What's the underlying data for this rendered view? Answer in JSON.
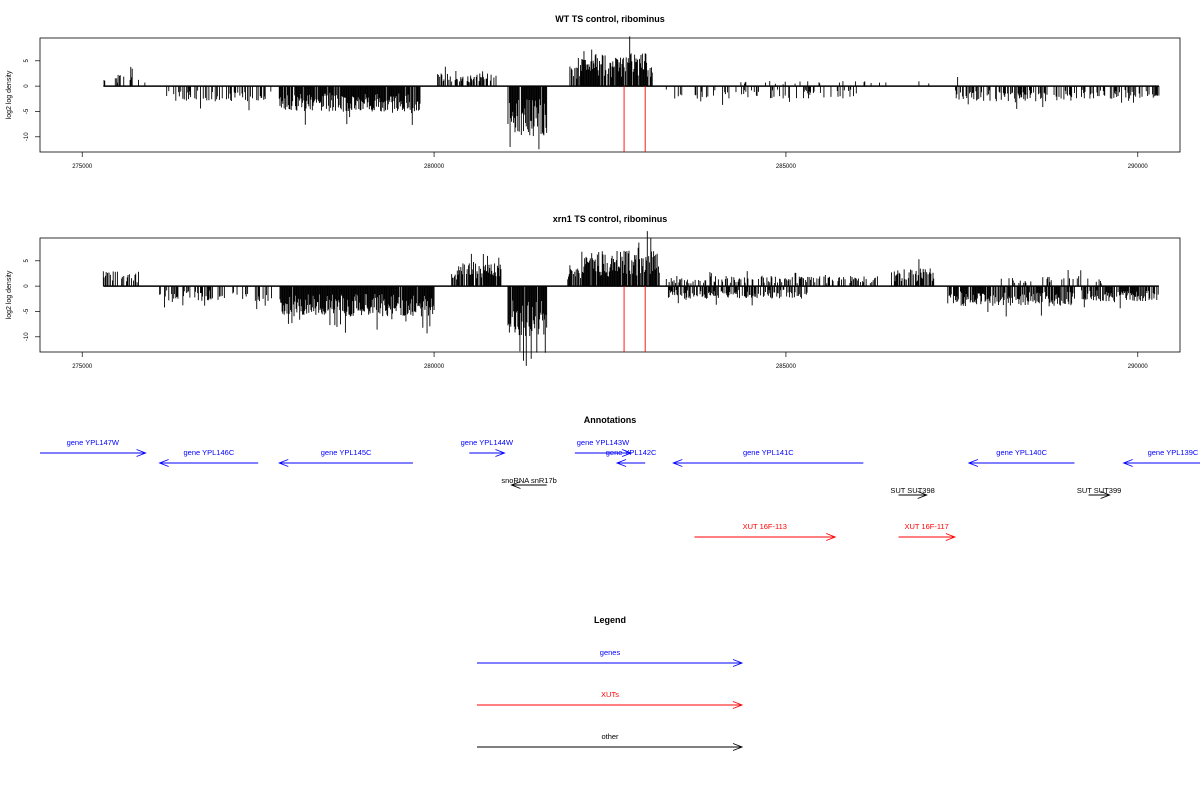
{
  "colors": {
    "gene": "#0000ff",
    "xut": "#ff0000",
    "other": "#000000",
    "marker": "#ff0000",
    "bars": "#000000"
  },
  "chart_data": [
    {
      "type": "bar",
      "title": "WT TS control, ribominus",
      "ylabel": "log2 log density",
      "xlim": [
        274400,
        290600
      ],
      "ylim": [
        -13,
        9.5
      ],
      "x_ticks": [
        275000,
        280000,
        285000,
        290000
      ],
      "y_ticks": [
        -10,
        -5,
        0,
        5
      ],
      "x_tick_labels": [
        "275000",
        "280000",
        "285000",
        "290000"
      ],
      "y_tick_labels": [
        "-10",
        "-5",
        "0",
        "5"
      ],
      "grid": false,
      "markers_x": [
        282700,
        283000
      ],
      "markers_ylim": [
        -13,
        0
      ],
      "regions": [
        {
          "from": 275300,
          "to": 275900,
          "sign": 1,
          "amp": 2.5,
          "density": 0.15
        },
        {
          "from": 276200,
          "to": 277700,
          "sign": -1,
          "amp": 3,
          "density": 0.4
        },
        {
          "from": 277800,
          "to": 279800,
          "sign": -1,
          "amp": 5,
          "density": 0.9
        },
        {
          "from": 280050,
          "to": 280900,
          "sign": 1,
          "amp": 2.5,
          "density": 0.4
        },
        {
          "from": 280350,
          "to": 280700,
          "sign": 1,
          "amp": 2,
          "density": 0.3
        },
        {
          "from": 281050,
          "to": 281600,
          "sign": -1,
          "amp": 10,
          "density": 0.95
        },
        {
          "from": 281900,
          "to": 282100,
          "sign": 1,
          "amp": 4.5,
          "density": 0.7
        },
        {
          "from": 282100,
          "to": 283100,
          "sign": 1,
          "amp": 6.5,
          "density": 0.9
        },
        {
          "from": 283300,
          "to": 286000,
          "sign": -1,
          "amp": 2.5,
          "density": 0.25
        },
        {
          "from": 283300,
          "to": 286500,
          "sign": 1,
          "amp": 1,
          "density": 0.05
        },
        {
          "from": 286600,
          "to": 287500,
          "sign": 1,
          "amp": 2,
          "density": 0.05
        },
        {
          "from": 287400,
          "to": 289100,
          "sign": -1,
          "amp": 3,
          "density": 0.5
        },
        {
          "from": 289100,
          "to": 290300,
          "sign": -1,
          "amp": 2.5,
          "density": 0.45
        }
      ]
    },
    {
      "type": "bar",
      "title": "xrn1 TS control, ribominus",
      "ylabel": "log2 log density",
      "xlim": [
        274400,
        290600
      ],
      "ylim": [
        -13,
        9.5
      ],
      "x_ticks": [
        275000,
        280000,
        285000,
        290000
      ],
      "y_ticks": [
        -10,
        -5,
        0,
        5
      ],
      "x_tick_labels": [
        "275000",
        "280000",
        "285000",
        "290000"
      ],
      "y_tick_labels": [
        "-10",
        "-5",
        "0",
        "5"
      ],
      "grid": false,
      "markers_x": [
        282700,
        283000
      ],
      "markers_ylim": [
        -13,
        0
      ],
      "regions": [
        {
          "from": 275300,
          "to": 275800,
          "sign": 1,
          "amp": 3,
          "density": 0.55
        },
        {
          "from": 276100,
          "to": 277700,
          "sign": -1,
          "amp": 3,
          "density": 0.4
        },
        {
          "from": 277800,
          "to": 280000,
          "sign": -1,
          "amp": 6,
          "density": 0.95
        },
        {
          "from": 280250,
          "to": 280950,
          "sign": 1,
          "amp": 4.5,
          "density": 0.9
        },
        {
          "from": 281050,
          "to": 281600,
          "sign": -1,
          "amp": 10,
          "density": 0.95
        },
        {
          "from": 281900,
          "to": 282100,
          "sign": 1,
          "amp": 4.5,
          "density": 0.7
        },
        {
          "from": 282100,
          "to": 283200,
          "sign": 1,
          "amp": 7,
          "density": 0.9
        },
        {
          "from": 283300,
          "to": 285300,
          "sign": -1,
          "amp": 2.5,
          "density": 0.6
        },
        {
          "from": 283300,
          "to": 286300,
          "sign": 1,
          "amp": 2,
          "density": 0.35
        },
        {
          "from": 286500,
          "to": 287100,
          "sign": 1,
          "amp": 3.5,
          "density": 0.7
        },
        {
          "from": 287300,
          "to": 289100,
          "sign": -1,
          "amp": 4,
          "density": 0.8
        },
        {
          "from": 288000,
          "to": 289500,
          "sign": 1,
          "amp": 2,
          "density": 0.2
        },
        {
          "from": 289200,
          "to": 290300,
          "sign": -1,
          "amp": 3,
          "density": 0.7
        }
      ]
    }
  ],
  "annotations": {
    "title": "Annotations",
    "items": [
      {
        "label": "gene YPL147W",
        "kind": "gene",
        "start": 274400,
        "end": 275900,
        "dir": "+"
      },
      {
        "label": "gene YPL146C",
        "kind": "gene",
        "start": 276100,
        "end": 277500,
        "dir": "-"
      },
      {
        "label": "gene YPL145C",
        "kind": "gene",
        "start": 277800,
        "end": 279700,
        "dir": "-"
      },
      {
        "label": "gene YPL144W",
        "kind": "gene",
        "start": 280500,
        "end": 281000,
        "dir": "+"
      },
      {
        "label": "snoRNA snR17b",
        "kind": "other",
        "start": 281100,
        "end": 281600,
        "dir": "-"
      },
      {
        "label": "gene YPL143W",
        "kind": "gene",
        "start": 282000,
        "end": 282800,
        "dir": "+"
      },
      {
        "label": "gene YPL142C",
        "kind": "gene",
        "start": 282600,
        "end": 283000,
        "dir": "-"
      },
      {
        "label": "gene YPL141C",
        "kind": "gene",
        "start": 283400,
        "end": 286100,
        "dir": "-"
      },
      {
        "label": "SUT SUT398",
        "kind": "other",
        "start": 286600,
        "end": 287000,
        "dir": "+"
      },
      {
        "label": "gene YPL140C",
        "kind": "gene",
        "start": 287600,
        "end": 289100,
        "dir": "-"
      },
      {
        "label": "SUT SUT399",
        "kind": "other",
        "start": 289300,
        "end": 289600,
        "dir": "+"
      },
      {
        "label": "gene YPL139C",
        "kind": "gene",
        "start": 289800,
        "end": 291200,
        "dir": "-"
      },
      {
        "label": "XUT 16F-113",
        "kind": "xut",
        "start": 283700,
        "end": 285700,
        "dir": "+"
      },
      {
        "label": "XUT 16F-117",
        "kind": "xut",
        "start": 286600,
        "end": 287400,
        "dir": "+"
      }
    ]
  },
  "legend": {
    "title": "Legend",
    "items": [
      {
        "label": "genes",
        "kind": "gene"
      },
      {
        "label": "XUTs",
        "kind": "xut"
      },
      {
        "label": "other",
        "kind": "other"
      }
    ]
  }
}
